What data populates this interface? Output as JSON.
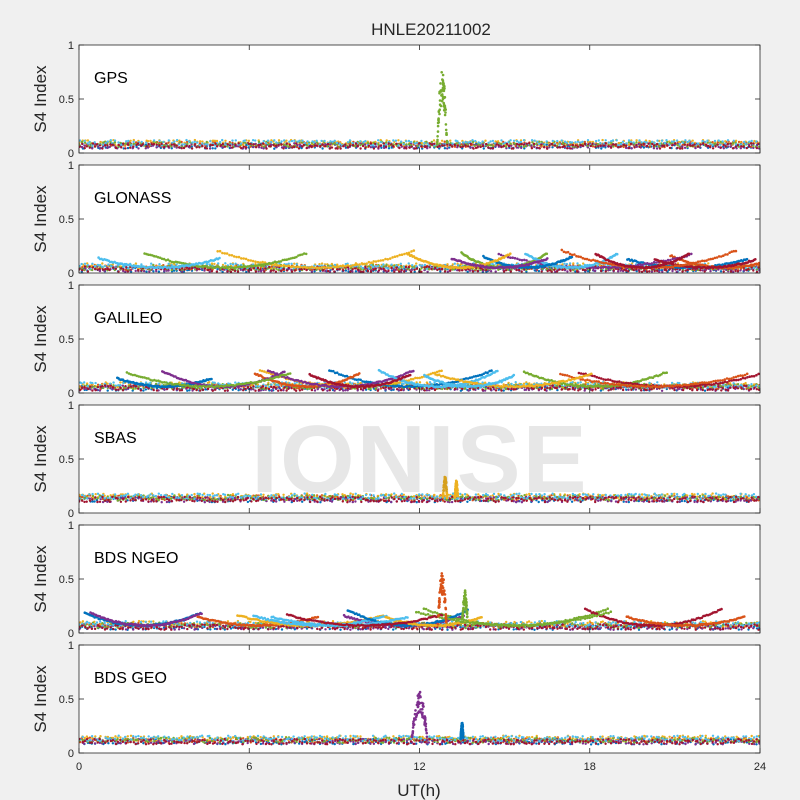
{
  "chart_data": {
    "type": "scatter",
    "title": "HNLE20211002",
    "xlabel": "UT(h)",
    "ylabel": "S4 Index",
    "xlim": [
      0,
      24
    ],
    "ylim": [
      0,
      1
    ],
    "xticks": [
      "0",
      "6",
      "12",
      "18",
      "24"
    ],
    "yticks": [
      "0",
      "0.5",
      "1"
    ],
    "grid": false,
    "watermark": "IONISE",
    "panels": [
      {
        "name": "GPS",
        "base": 0.08,
        "arcs": false,
        "spikes": [
          {
            "x": 12.8,
            "peak": 0.76,
            "width": 0.35,
            "color": "#77ac30"
          }
        ]
      },
      {
        "name": "GLONASS",
        "base": 0.05,
        "arcs": true,
        "spikes": []
      },
      {
        "name": "GALILEO",
        "base": 0.06,
        "arcs": true,
        "spikes": []
      },
      {
        "name": "SBAS",
        "base": 0.14,
        "arcs": false,
        "spikes": [
          {
            "x": 12.9,
            "peak": 0.34,
            "width": 0.15,
            "color": "#edb120"
          },
          {
            "x": 13.3,
            "peak": 0.3,
            "width": 0.1,
            "color": "#edb120"
          }
        ]
      },
      {
        "name": "BDS NGEO",
        "base": 0.07,
        "arcs": true,
        "spikes": [
          {
            "x": 12.8,
            "peak": 0.58,
            "width": 0.3,
            "color": "#d95319"
          },
          {
            "x": 13.6,
            "peak": 0.4,
            "width": 0.2,
            "color": "#77ac30"
          }
        ]
      },
      {
        "name": "BDS GEO",
        "base": 0.12,
        "arcs": false,
        "spikes": [
          {
            "x": 12.0,
            "peak": 0.57,
            "width": 0.55,
            "color": "#7e2f8e"
          },
          {
            "x": 13.5,
            "peak": 0.29,
            "width": 0.1,
            "color": "#0072bd"
          }
        ]
      }
    ],
    "series_colors": [
      "#0072bd",
      "#d95319",
      "#edb120",
      "#7e2f8e",
      "#77ac30",
      "#4dbeee",
      "#a2142f"
    ]
  }
}
